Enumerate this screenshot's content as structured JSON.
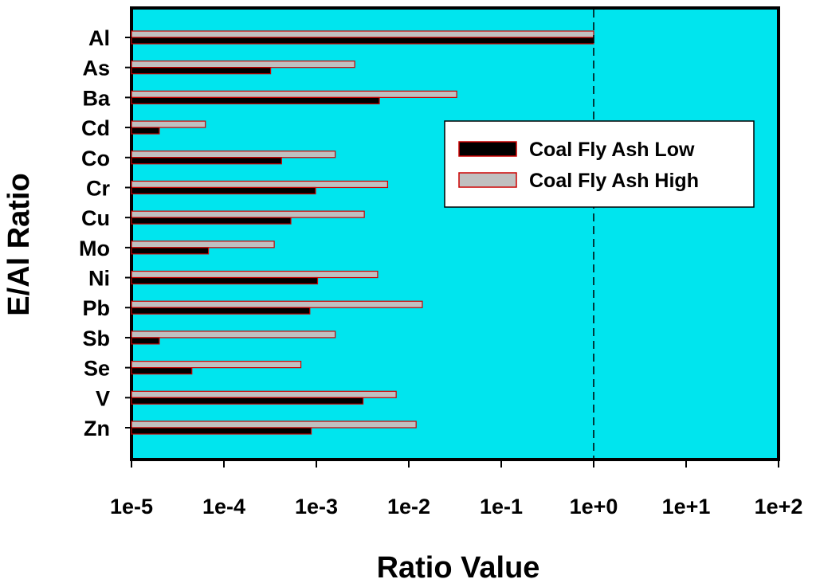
{
  "chart_data": {
    "type": "bar",
    "orientation": "horizontal",
    "xscale": "log",
    "xlim": [
      1e-05,
      100
    ],
    "xticks": [
      1e-05,
      0.0001,
      0.001,
      0.01,
      0.1,
      1,
      10,
      100
    ],
    "xtick_labels": [
      "1e-5",
      "1e-4",
      "1e-3",
      "1e-2",
      "1e-1",
      "1e+0",
      "1e+1",
      "1e+2"
    ],
    "xlabel": "Ratio Value",
    "ylabel": "E/Al Ratio",
    "title": "",
    "grid": false,
    "reference_line": {
      "value": 1,
      "style": "dashed"
    },
    "legend_position": "upper-right",
    "categories": [
      "Al",
      "As",
      "Ba",
      "Cd",
      "Co",
      "Cr",
      "Cu",
      "Mo",
      "Ni",
      "Pb",
      "Sb",
      "Se",
      "V",
      "Zn"
    ],
    "series": [
      {
        "name": "Coal Fly Ash Low",
        "color": "#000000",
        "edge_color": "#cc0000",
        "values": [
          1.0,
          0.00032,
          0.0048,
          2e-05,
          0.00042,
          0.00098,
          0.00053,
          6.8e-05,
          0.00103,
          0.00085,
          2e-05,
          4.5e-05,
          0.0032,
          0.00088
        ]
      },
      {
        "name": "Coal Fly Ash High",
        "color": "#c0c0c0",
        "edge_color": "#cc0000",
        "values": [
          1.0,
          0.0026,
          0.033,
          6.3e-05,
          0.0016,
          0.0059,
          0.0033,
          0.00035,
          0.0046,
          0.014,
          0.0016,
          0.00068,
          0.0073,
          0.012
        ]
      }
    ],
    "plot_background": "#00e5ee"
  }
}
